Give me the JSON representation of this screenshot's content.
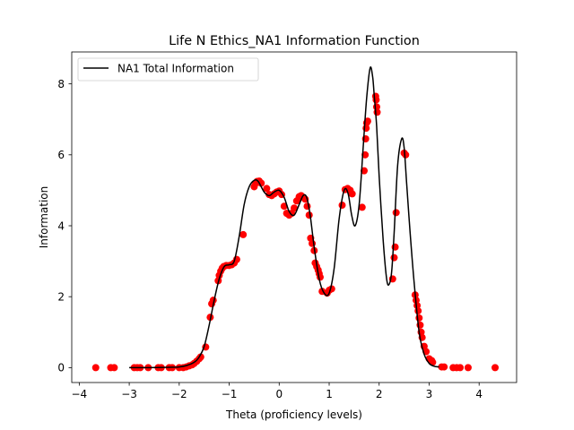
{
  "chart_data": {
    "type": "line",
    "title": "Life N Ethics_NA1 Information Function",
    "xlabel": "Theta (proficiency levels)",
    "ylabel": "Information",
    "xlim": [
      -4.15,
      4.75
    ],
    "ylim": [
      -0.42,
      8.9
    ],
    "xticks": [
      -4,
      -3,
      -2,
      -1,
      0,
      1,
      2,
      3,
      4
    ],
    "yticks": [
      0,
      2,
      4,
      6,
      8
    ],
    "grid": false,
    "legend": {
      "position": "top-left",
      "entries": [
        "NA1 Total Information"
      ]
    },
    "colors": {
      "line": "#000000",
      "points": "#ff0000"
    },
    "series": [
      {
        "name": "NA1 Total Information",
        "kind": "line",
        "x": [
          -3.0,
          -2.6,
          -2.2,
          -2.0,
          -1.85,
          -1.7,
          -1.6,
          -1.5,
          -1.4,
          -1.3,
          -1.2,
          -1.1,
          -1.0,
          -0.9,
          -0.8,
          -0.7,
          -0.6,
          -0.5,
          -0.42,
          -0.3,
          -0.2,
          -0.1,
          0.0,
          0.1,
          0.2,
          0.3,
          0.4,
          0.48,
          0.55,
          0.62,
          0.7,
          0.8,
          0.9,
          1.0,
          1.1,
          1.2,
          1.3,
          1.38,
          1.45,
          1.52,
          1.6,
          1.68,
          1.75,
          1.82,
          1.87,
          1.9,
          1.95,
          2.0,
          2.08,
          2.15,
          2.2,
          2.25,
          2.3,
          2.37,
          2.45,
          2.5,
          2.55,
          2.62,
          2.7,
          2.8,
          2.9,
          3.0,
          3.1,
          3.2
        ],
        "y": [
          0.0,
          0.0,
          0.01,
          0.02,
          0.06,
          0.15,
          0.3,
          0.6,
          1.2,
          1.9,
          2.5,
          2.85,
          2.9,
          3.0,
          3.7,
          4.6,
          5.1,
          5.28,
          5.25,
          4.95,
          4.85,
          4.95,
          5.0,
          4.8,
          4.4,
          4.3,
          4.6,
          4.85,
          4.8,
          4.3,
          3.4,
          2.5,
          2.1,
          2.1,
          2.8,
          4.2,
          5.0,
          4.9,
          4.3,
          4.0,
          4.6,
          6.2,
          7.6,
          8.45,
          8.2,
          7.7,
          6.8,
          5.4,
          3.6,
          2.5,
          2.35,
          2.7,
          3.8,
          5.7,
          6.45,
          6.2,
          5.2,
          3.8,
          2.4,
          1.0,
          0.38,
          0.12,
          0.04,
          0.02
        ]
      },
      {
        "name": "",
        "kind": "scatter",
        "x": [
          -3.67,
          -3.37,
          -3.3,
          -2.9,
          -2.84,
          -2.78,
          -2.62,
          -2.42,
          -2.36,
          -2.2,
          -2.14,
          -2.0,
          -1.92,
          -1.86,
          -1.8,
          -1.74,
          -1.7,
          -1.65,
          -1.6,
          -1.57,
          -1.47,
          -1.38,
          -1.35,
          -1.32,
          -1.22,
          -1.2,
          -1.17,
          -1.14,
          -1.11,
          -1.06,
          -1.0,
          -0.95,
          -0.9,
          -0.85,
          -0.72,
          -0.5,
          -0.47,
          -0.44,
          -0.4,
          -0.36,
          -0.25,
          -0.2,
          -0.15,
          -0.1,
          -0.05,
          0.0,
          0.05,
          0.1,
          0.15,
          0.2,
          0.25,
          0.3,
          0.35,
          0.4,
          0.44,
          0.48,
          0.52,
          0.56,
          0.6,
          0.63,
          0.66,
          0.7,
          0.72,
          0.75,
          0.78,
          0.8,
          0.82,
          0.86,
          0.96,
          1.0,
          1.05,
          1.26,
          1.32,
          1.37,
          1.42,
          1.46,
          1.66,
          1.7,
          1.72,
          1.73,
          1.74,
          1.75,
          1.77,
          1.93,
          1.94,
          1.95,
          1.96,
          2.27,
          2.3,
          2.32,
          2.34,
          2.5,
          2.53,
          2.72,
          2.74,
          2.76,
          2.78,
          2.8,
          2.82,
          2.84,
          2.86,
          2.9,
          2.94,
          3.0,
          3.05,
          3.07,
          3.25,
          3.3,
          3.48,
          3.55,
          3.62,
          3.78,
          4.32
        ],
        "y": [
          0.0,
          0.0,
          0.0,
          0.0,
          0.0,
          0.0,
          0.0,
          0.0,
          0.0,
          0.0,
          0.0,
          0.0,
          0.0,
          0.02,
          0.05,
          0.08,
          0.12,
          0.18,
          0.25,
          0.3,
          0.58,
          1.42,
          1.8,
          1.9,
          2.45,
          2.6,
          2.72,
          2.8,
          2.85,
          2.88,
          2.88,
          2.9,
          2.95,
          3.05,
          3.75,
          5.1,
          5.2,
          5.25,
          5.26,
          5.2,
          5.05,
          4.88,
          4.85,
          4.9,
          4.95,
          4.98,
          4.88,
          4.55,
          4.35,
          4.3,
          4.35,
          4.5,
          4.7,
          4.82,
          4.85,
          4.8,
          4.75,
          4.55,
          4.3,
          3.65,
          3.5,
          3.3,
          2.95,
          2.85,
          2.75,
          2.65,
          2.55,
          2.15,
          2.1,
          2.18,
          2.22,
          4.58,
          5.02,
          5.05,
          5.0,
          4.9,
          4.52,
          5.55,
          6.0,
          6.45,
          6.75,
          6.9,
          6.95,
          7.65,
          7.55,
          7.35,
          7.2,
          2.5,
          3.1,
          3.4,
          4.37,
          6.05,
          6.0,
          2.05,
          1.9,
          1.75,
          1.6,
          1.4,
          1.2,
          1.0,
          0.85,
          0.6,
          0.45,
          0.25,
          0.2,
          0.15,
          0.02,
          0.02,
          0.0,
          0.0,
          0.0,
          0.0,
          0.0
        ]
      }
    ]
  }
}
